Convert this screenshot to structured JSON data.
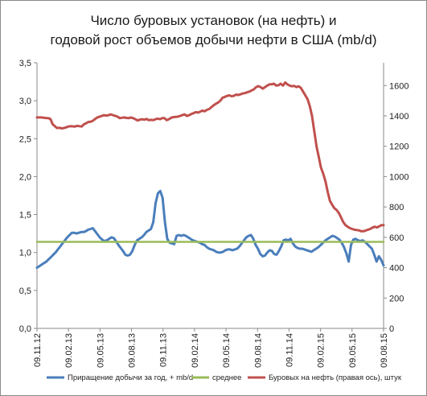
{
  "chart_data": {
    "type": "line",
    "title_line1": "Число буровых установок (на нефть) и",
    "title_line2": "годовой рост объемов добычи нефти в США (mb/d)",
    "y_left": {
      "min": 0,
      "max": 3.5,
      "ticks": [
        "0,0",
        "0,5",
        "1,0",
        "1,5",
        "2,0",
        "2,5",
        "3,0",
        "3,5"
      ],
      "tick_values": [
        0,
        0.5,
        1.0,
        1.5,
        2.0,
        2.5,
        3.0,
        3.5
      ]
    },
    "y_right": {
      "min": 0,
      "max": 1750,
      "ticks": [
        "0",
        "200",
        "400",
        "600",
        "800",
        "1000",
        "1200",
        "1400",
        "1600"
      ],
      "tick_values": [
        0,
        200,
        400,
        600,
        800,
        1000,
        1200,
        1400,
        1600
      ]
    },
    "x_ticks": [
      "09.11.12",
      "09.02.13",
      "09.05.13",
      "09.08.13",
      "09.11.13",
      "09.02.14",
      "09.05.14",
      "09.08.14",
      "09.11.14",
      "09.02.15",
      "09.05.15",
      "09.08.15"
    ],
    "grid": false,
    "legend_position": "bottom",
    "series": [
      {
        "name": "Приращение добычи за год, + mb/d",
        "axis": "left",
        "color": "#4a7ebb",
        "values": [
          0.8,
          0.82,
          0.84,
          0.86,
          0.88,
          0.91,
          0.94,
          0.97,
          1.0,
          1.04,
          1.08,
          1.12,
          1.16,
          1.2,
          1.23,
          1.26,
          1.26,
          1.25,
          1.26,
          1.27,
          1.27,
          1.28,
          1.3,
          1.31,
          1.32,
          1.28,
          1.24,
          1.2,
          1.17,
          1.15,
          1.16,
          1.18,
          1.2,
          1.19,
          1.15,
          1.1,
          1.06,
          1.02,
          0.97,
          0.96,
          0.97,
          1.02,
          1.1,
          1.16,
          1.18,
          1.2,
          1.23,
          1.27,
          1.29,
          1.31,
          1.4,
          1.65,
          1.78,
          1.81,
          1.72,
          1.4,
          1.18,
          1.13,
          1.12,
          1.11,
          1.22,
          1.23,
          1.22,
          1.23,
          1.22,
          1.2,
          1.18,
          1.16,
          1.15,
          1.14,
          1.13,
          1.11,
          1.1,
          1.07,
          1.05,
          1.04,
          1.03,
          1.01,
          1.0,
          1.0,
          1.01,
          1.03,
          1.04,
          1.04,
          1.03,
          1.04,
          1.05,
          1.08,
          1.12,
          1.16,
          1.2,
          1.22,
          1.23,
          1.18,
          1.1,
          1.05,
          0.98,
          0.95,
          0.96,
          1.0,
          1.03,
          1.02,
          0.98,
          0.97,
          1.02,
          1.08,
          1.16,
          1.17,
          1.16,
          1.18,
          1.12,
          1.08,
          1.06,
          1.05,
          1.05,
          1.04,
          1.03,
          1.02,
          1.01,
          1.03,
          1.05,
          1.07,
          1.1,
          1.13,
          1.16,
          1.18,
          1.2,
          1.22,
          1.21,
          1.19,
          1.17,
          1.13,
          1.07,
          0.99,
          0.88,
          1.1,
          1.17,
          1.18,
          1.16,
          1.15,
          1.16,
          1.14,
          1.11,
          1.08,
          1.05,
          0.97,
          0.88,
          0.95,
          0.9,
          0.83
        ]
      },
      {
        "name": "среднее",
        "axis": "left",
        "color": "#9bbb59",
        "values": [
          1.14,
          1.14
        ]
      },
      {
        "name": "Буровых на нефть (правая ось), штук",
        "axis": "right",
        "color": "#c0504d",
        "values": [
          1390,
          1390,
          1390,
          1388,
          1386,
          1385,
          1380,
          1345,
          1332,
          1320,
          1322,
          1318,
          1320,
          1324,
          1330,
          1332,
          1331,
          1330,
          1335,
          1332,
          1330,
          1345,
          1352,
          1360,
          1362,
          1368,
          1380,
          1390,
          1395,
          1400,
          1405,
          1402,
          1405,
          1410,
          1405,
          1400,
          1395,
          1385,
          1388,
          1390,
          1387,
          1385,
          1390,
          1385,
          1378,
          1370,
          1375,
          1378,
          1375,
          1380,
          1372,
          1374,
          1372,
          1378,
          1382,
          1378,
          1385,
          1385,
          1372,
          1378,
          1388,
          1392,
          1393,
          1395,
          1400,
          1405,
          1410,
          1400,
          1404,
          1412,
          1418,
          1425,
          1422,
          1428,
          1435,
          1430,
          1440,
          1445,
          1458,
          1470,
          1480,
          1488,
          1500,
          1520,
          1525,
          1532,
          1535,
          1530,
          1532,
          1540,
          1538,
          1542,
          1548,
          1550,
          1556,
          1560,
          1568,
          1575,
          1590,
          1596,
          1590,
          1580,
          1590,
          1600,
          1608,
          1608,
          1612,
          1600,
          1602,
          1612,
          1600,
          1620,
          1608,
          1600,
          1595,
          1598,
          1590,
          1595,
          1585,
          1560,
          1535,
          1510,
          1465,
          1400,
          1300,
          1200,
          1130,
          1060,
          1020,
          970,
          900,
          840,
          815,
          792,
          780,
          760,
          730,
          700,
          680,
          670,
          660,
          655,
          650,
          648,
          646,
          640,
          640,
          645,
          650,
          655,
          664,
          670,
          665,
          672,
          680,
          680
        ]
      }
    ]
  }
}
